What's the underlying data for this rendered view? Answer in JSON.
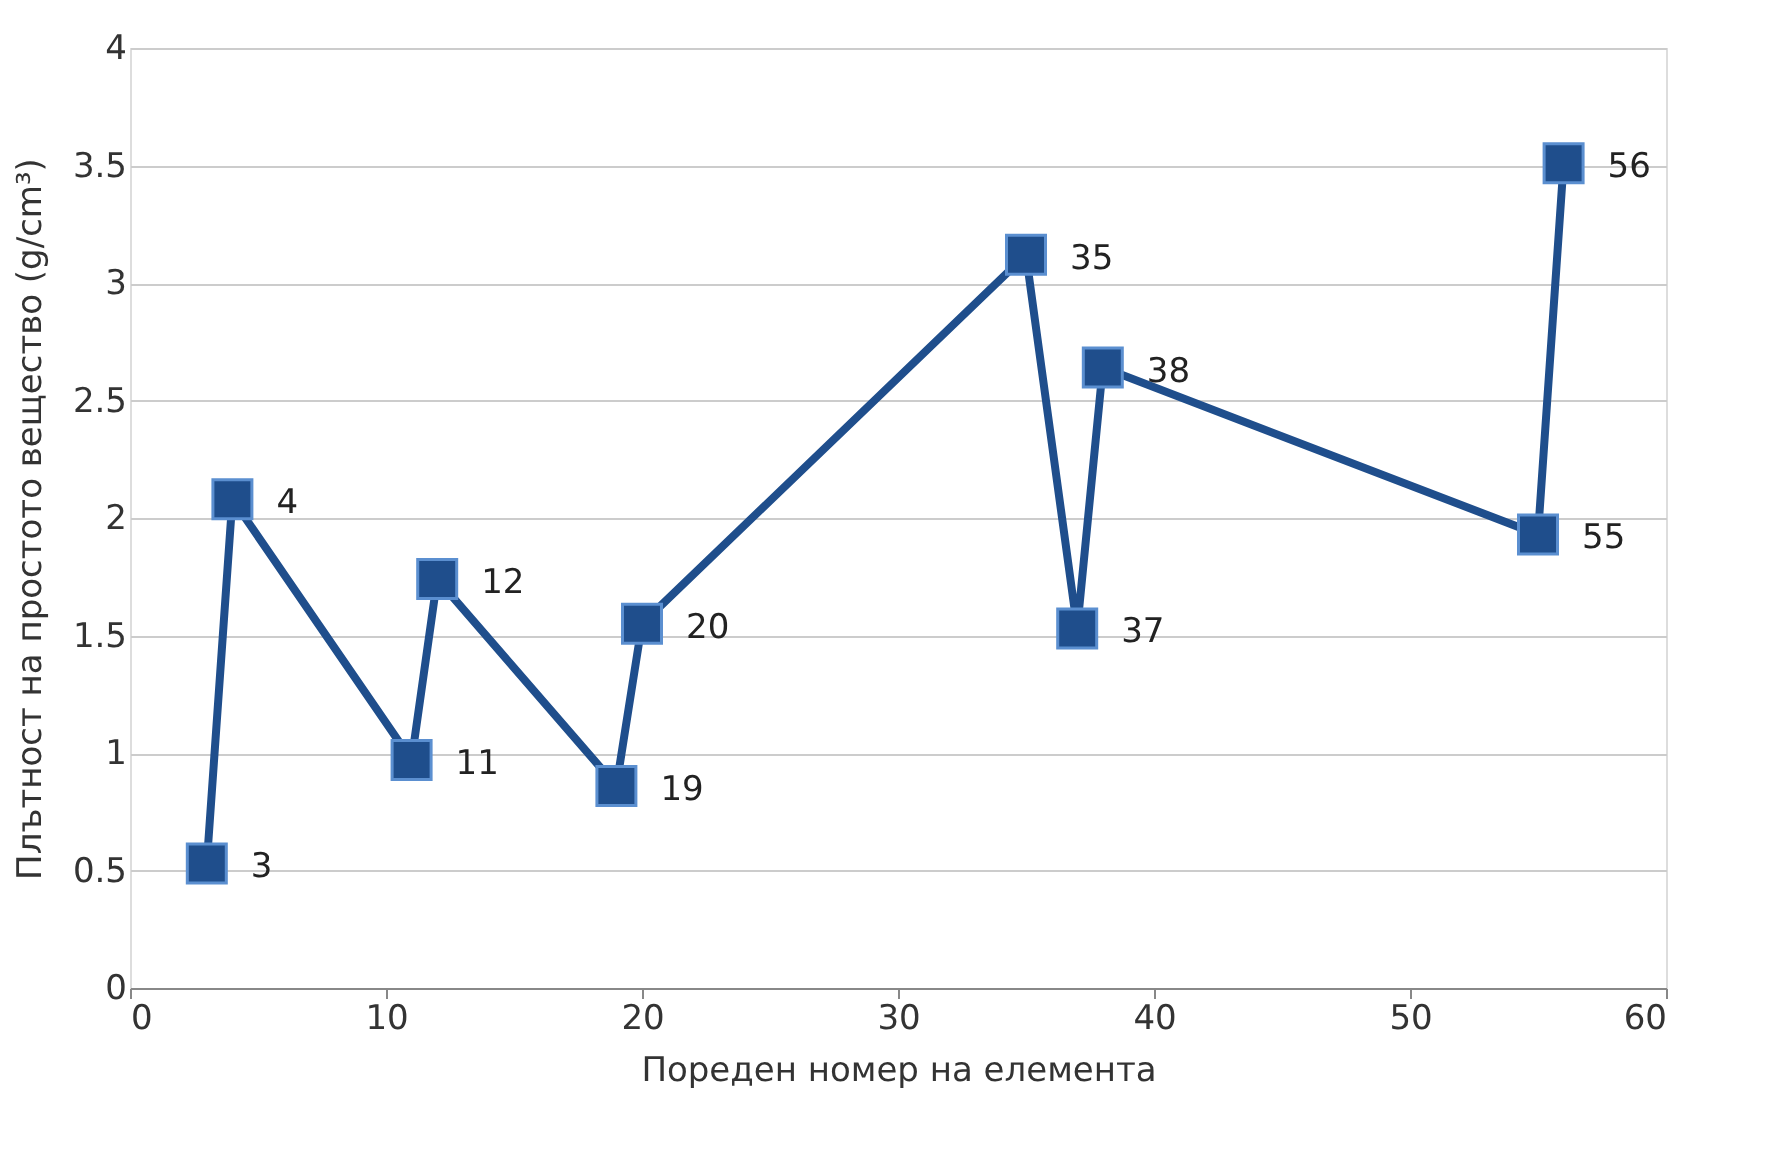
{
  "chart_data": {
    "type": "line",
    "xlabel": "Пореден номер на елемента",
    "ylabel": "Плътност на простото вещество (g/cm³)",
    "x": [
      3,
      4,
      11,
      12,
      19,
      20,
      35,
      37,
      38,
      55,
      56
    ],
    "series": [
      {
        "color": "#1f4e8c",
        "values": [
          0.53,
          2.08,
          0.97,
          1.74,
          0.86,
          1.55,
          3.12,
          1.53,
          2.64,
          1.93,
          3.51
        ]
      }
    ],
    "xlim": [
      0,
      60
    ],
    "xticks": [
      0,
      10,
      20,
      30,
      40,
      50,
      60
    ],
    "ylim": [
      0,
      4
    ],
    "yticks": [
      0,
      0.5,
      1,
      1.5,
      2,
      2.5,
      3,
      3.5,
      4
    ],
    "grid": "y",
    "marker": "square",
    "line_style": "solid",
    "annotations": [
      {
        "text": "3",
        "x": 3,
        "y": 0.53
      },
      {
        "text": "4",
        "x": 4,
        "y": 2.08
      },
      {
        "text": "11",
        "x": 11,
        "y": 0.97
      },
      {
        "text": "12",
        "x": 12,
        "y": 1.74
      },
      {
        "text": "19",
        "x": 19,
        "y": 0.86
      },
      {
        "text": "20",
        "x": 20,
        "y": 1.55
      },
      {
        "text": "35",
        "x": 35,
        "y": 3.12
      },
      {
        "text": "37",
        "x": 37,
        "y": 1.53
      },
      {
        "text": "38",
        "x": 38,
        "y": 2.64
      },
      {
        "text": "55",
        "x": 55,
        "y": 1.93
      },
      {
        "text": "56",
        "x": 56,
        "y": 3.51
      }
    ]
  }
}
